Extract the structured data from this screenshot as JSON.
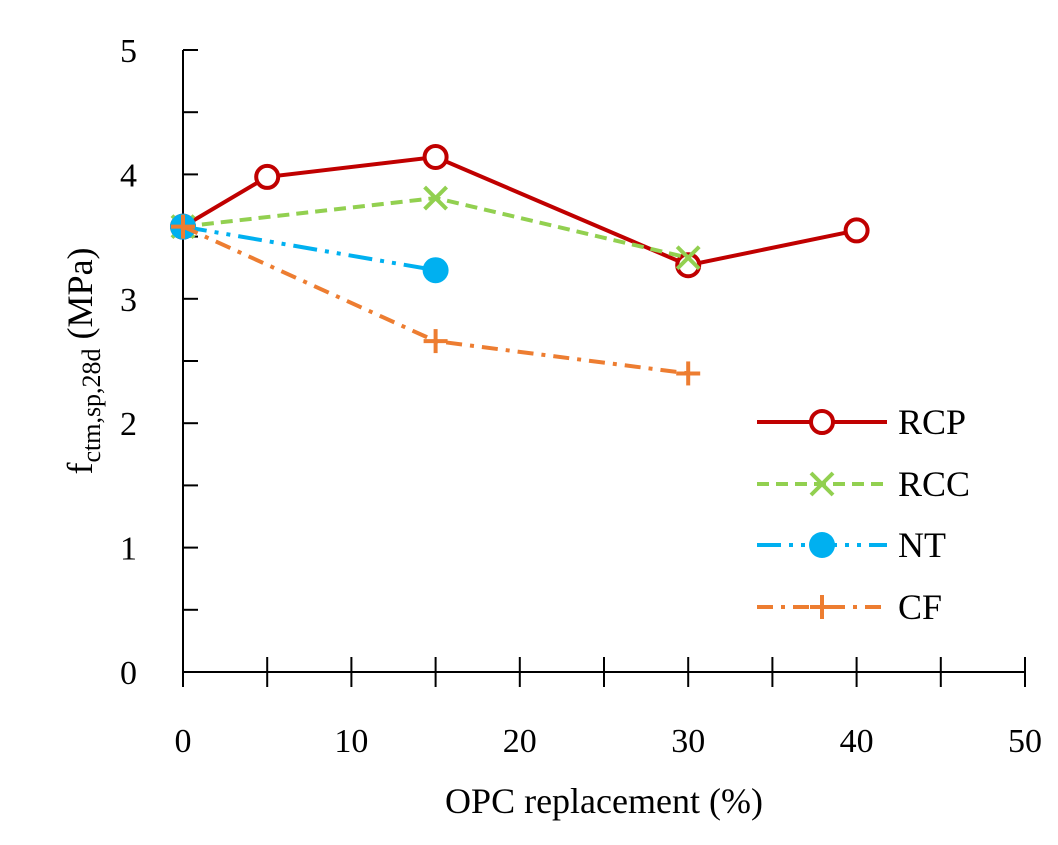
{
  "chart_data": {
    "type": "line",
    "title": "",
    "xlabel": "OPC replacement (%)",
    "ylabel": {
      "main": "f",
      "subscript": "ctm,sp,28d",
      "unit": " (MPa)"
    },
    "xlim": [
      0,
      50
    ],
    "ylim": [
      0,
      5
    ],
    "x_ticks": [
      "0",
      "10",
      "20",
      "30",
      "40",
      "50"
    ],
    "y_ticks": [
      "0",
      "1",
      "2",
      "3",
      "4",
      "5"
    ],
    "grid": false,
    "legend_position": "right",
    "series": [
      {
        "name": "RCP",
        "color": "#C00000",
        "marker": "open-circle",
        "line": "solid",
        "x": [
          0,
          5,
          15,
          30,
          40
        ],
        "y": [
          3.58,
          3.98,
          4.14,
          3.27,
          3.55
        ]
      },
      {
        "name": "RCC",
        "color": "#92D050",
        "marker": "x",
        "line": "dashed",
        "x": [
          0,
          15,
          30
        ],
        "y": [
          3.58,
          3.81,
          3.33
        ]
      },
      {
        "name": "NT",
        "color": "#00B0F0",
        "marker": "filled-circle",
        "line": "dash-dot-dot",
        "x": [
          0,
          15
        ],
        "y": [
          3.58,
          3.23
        ]
      },
      {
        "name": "CF",
        "color": "#ED7D31",
        "marker": "plus",
        "line": "dash-dot",
        "x": [
          0,
          15,
          30
        ],
        "y": [
          3.58,
          2.66,
          2.4
        ]
      }
    ]
  }
}
